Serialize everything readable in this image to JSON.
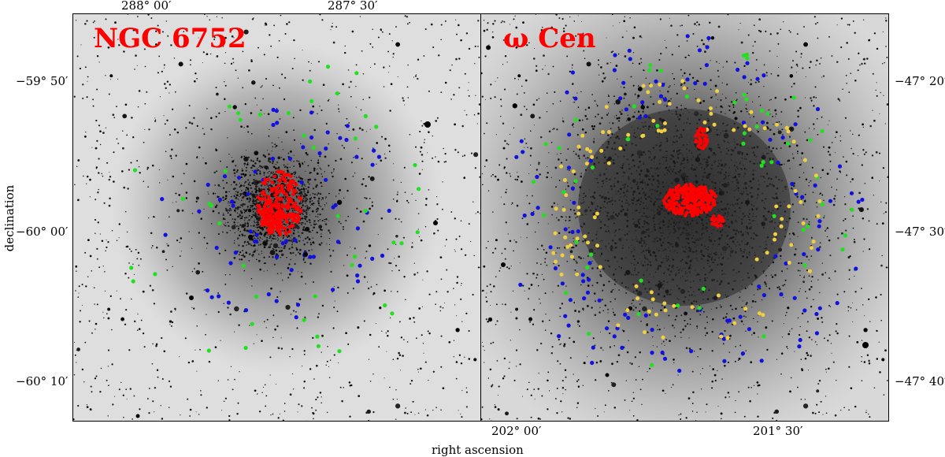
{
  "panels": [
    {
      "title": "NGC 6752",
      "ra_ticks": [
        "288° 00′",
        "287° 30′"
      ],
      "dec_ticks": [
        "−59° 50′",
        "−60° 00′",
        "−60° 10′"
      ]
    },
    {
      "title": "ω Cen",
      "ra_ticks": [
        "202° 00′",
        "201° 30′"
      ],
      "dec_ticks": [
        "−47° 20′",
        "−47° 30′",
        "−47° 40′"
      ]
    }
  ],
  "axes": {
    "xlabel": "right ascension",
    "ylabel": "declination"
  },
  "marker_colors": {
    "core_field": "#ff0000",
    "blue_stars": "#1010e0",
    "green_stars": "#20e020",
    "yellow_stars": "#f0d040"
  }
}
